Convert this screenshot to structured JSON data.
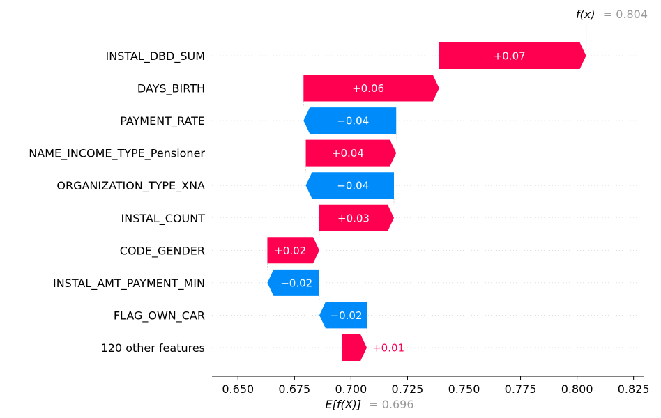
{
  "chart_data": {
    "type": "waterfall",
    "base_value": {
      "label_prefix": "E[f(X)]",
      "value": 0.696,
      "value_text": "= 0.696"
    },
    "output_value": {
      "label_prefix": "f(x)",
      "value": 0.804,
      "value_text": "= 0.804"
    },
    "features": [
      {
        "name": "INSTAL_DBD_SUM",
        "start": 0.739,
        "end": 0.804,
        "label": "+0.07"
      },
      {
        "name": "DAYS_BIRTH",
        "start": 0.679,
        "end": 0.739,
        "label": "+0.06"
      },
      {
        "name": "PAYMENT_RATE",
        "start": 0.72,
        "end": 0.679,
        "label": "−0.04"
      },
      {
        "name": "NAME_INCOME_TYPE_Pensioner",
        "start": 0.68,
        "end": 0.72,
        "label": "+0.04"
      },
      {
        "name": "ORGANIZATION_TYPE_XNA",
        "start": 0.719,
        "end": 0.68,
        "label": "−0.04"
      },
      {
        "name": "INSTAL_COUNT",
        "start": 0.686,
        "end": 0.719,
        "label": "+0.03"
      },
      {
        "name": "CODE_GENDER",
        "start": 0.663,
        "end": 0.686,
        "label": "+0.02"
      },
      {
        "name": "INSTAL_AMT_PAYMENT_MIN",
        "start": 0.686,
        "end": 0.663,
        "label": "−0.02"
      },
      {
        "name": "FLAG_OWN_CAR",
        "start": 0.707,
        "end": 0.686,
        "label": "−0.02"
      },
      {
        "name": "120 other features",
        "start": 0.696,
        "end": 0.707,
        "label": "+0.01"
      }
    ],
    "x_ticks": [
      0.65,
      0.675,
      0.7,
      0.725,
      0.75,
      0.775,
      0.8,
      0.825
    ],
    "x_tick_labels": [
      "0.650",
      "0.675",
      "0.700",
      "0.725",
      "0.750",
      "0.775",
      "0.800",
      "0.825"
    ],
    "xlim": [
      0.6385,
      0.8285
    ],
    "colors": {
      "positive": "#ff0051",
      "negative": "#008bfb",
      "text_on_bar": "#ffffff",
      "value_note": "#999999"
    }
  }
}
